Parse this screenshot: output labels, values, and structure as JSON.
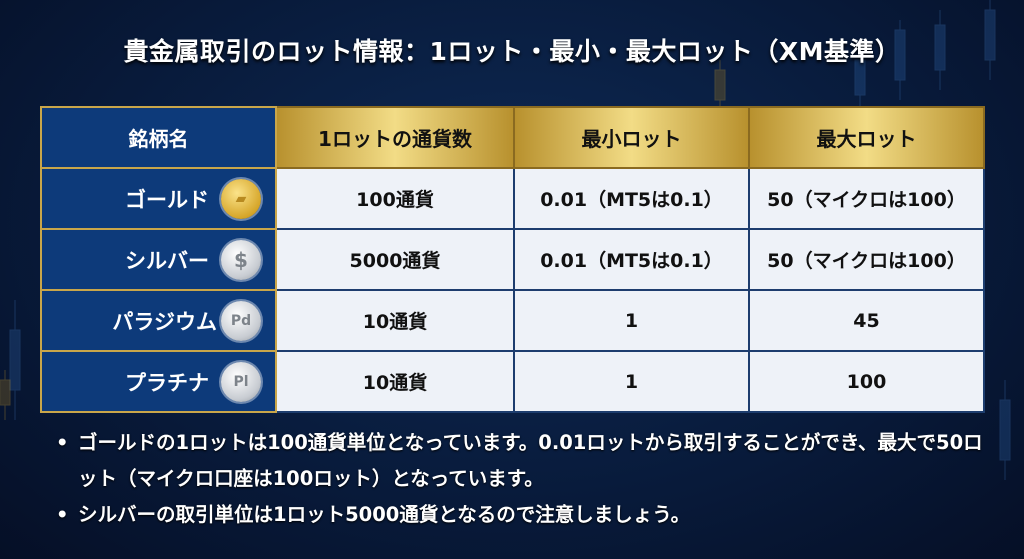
{
  "title": "貴金属取引のロット情報：1ロット・最小・最大ロット（XM基準）",
  "table": {
    "headers": [
      "銘柄名",
      "1ロットの通貨数",
      "最小ロット",
      "最大ロット"
    ],
    "rows": [
      {
        "name": "ゴールド",
        "icon": "gold-bar-coin-icon",
        "coin_text": "",
        "units": "100通貨",
        "min": "0.01（MT5は0.1）",
        "max": "50（マイクロは100）"
      },
      {
        "name": "シルバー",
        "icon": "silver-dollar-coin-icon",
        "coin_text": "$",
        "units": "5000通貨",
        "min": "0.01（MT5は0.1）",
        "max": "50（マイクロは100）"
      },
      {
        "name": "パラジウム",
        "icon": "palladium-coin-icon",
        "coin_text": "Pd",
        "units": "10通貨",
        "min": "1",
        "max": "45"
      },
      {
        "name": "プラチナ",
        "icon": "platinum-coin-icon",
        "coin_text": "Pl",
        "units": "10通貨",
        "min": "1",
        "max": "100"
      }
    ]
  },
  "bullets": [
    "ゴールドの1ロットは100通貨単位となっています。0.01ロットから取引することができ、最大で50ロット（マイクロ口座は100ロット）となっています。",
    "シルバーの取引単位は1ロット5000通貨となるので注意しましょう。"
  ],
  "colors": {
    "navy": "#0d3a7a",
    "gold": "#c9a64a",
    "background": "#081a3a"
  }
}
